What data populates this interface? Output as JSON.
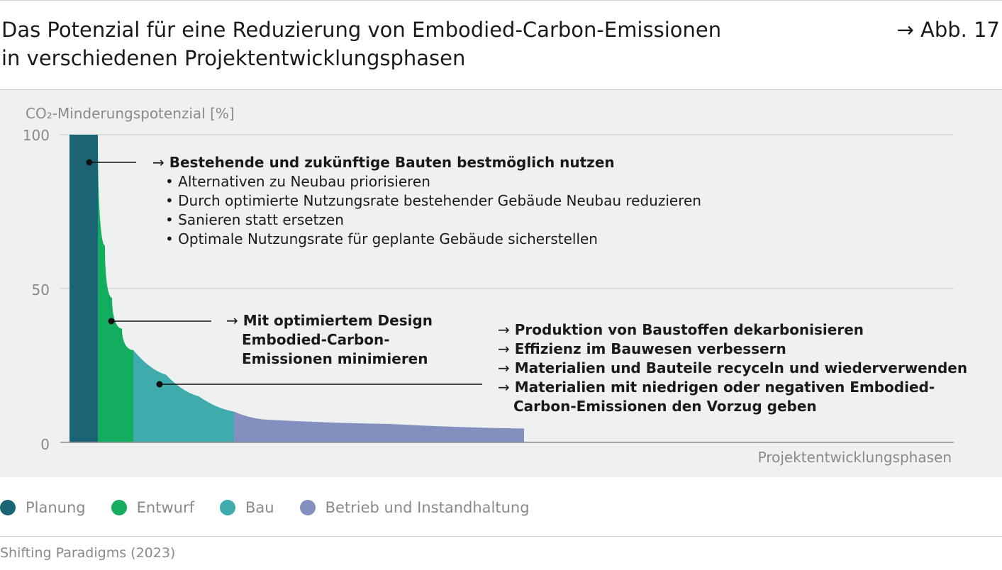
{
  "header": {
    "title_line1": "Das Potenzial für eine Reduzierung von Embodied-Carbon-Emissionen",
    "title_line2": "in verschiedenen Projektentwicklungsphasen",
    "figure_ref": "→ Abb. 17"
  },
  "chart_data": {
    "type": "area",
    "title": "Das Potenzial für eine Reduzierung von Embodied-Carbon-Emissionen in verschiedenen Projektentwicklungsphasen",
    "ylabel": "CO₂-Minderungspotenzial [%]",
    "xlabel": "Projektentwicklungsphasen",
    "ylim": [
      0,
      100
    ],
    "yticks": [
      "100",
      "50",
      "0"
    ],
    "grid": true,
    "legend_position": "bottom",
    "series": [
      {
        "name": "Planung",
        "color": "#1b6475",
        "values": [
          100,
          100
        ]
      },
      {
        "name": "Entwurf",
        "color": "#12ad5f",
        "values": [
          100,
          64,
          47,
          37,
          30
        ]
      },
      {
        "name": "Bau",
        "color": "#3fabad",
        "values": [
          30,
          22,
          15,
          10
        ]
      },
      {
        "name": "Betrieb und Instandhaltung",
        "color": "#8390bf",
        "values": [
          10,
          7.5,
          6,
          4.5
        ]
      }
    ],
    "annotations": [
      {
        "target": "Planung",
        "head": "Bestehende und zukünftige Bauten bestmöglich nutzen",
        "items": [
          "Alternativen zu Neubau priorisieren",
          "Durch optimierte Nutzungsrate bestehender Gebäude Neubau reduzieren",
          "Sanieren statt ersetzen",
          "Optimale Nutzungsrate für geplante Gebäude sicherstellen"
        ]
      },
      {
        "target": "Entwurf",
        "head_lines": [
          "Mit optimiertem Design",
          "Embodied-Carbon-",
          "Emissionen minimieren"
        ]
      },
      {
        "target": "Bau",
        "lines": [
          "Produktion von Baustoffen dekarbonisieren",
          "Effizienz im Bauwesen verbessern",
          "Materialien und Bauteile recyceln und wiederverwenden",
          "Materialien mit niedrigen oder negativen Embodied-",
          "Carbon-Emissionen den Vorzug geben"
        ]
      }
    ]
  },
  "arrow_glyph": "→",
  "source": "Shifting Paradigms (2023)"
}
